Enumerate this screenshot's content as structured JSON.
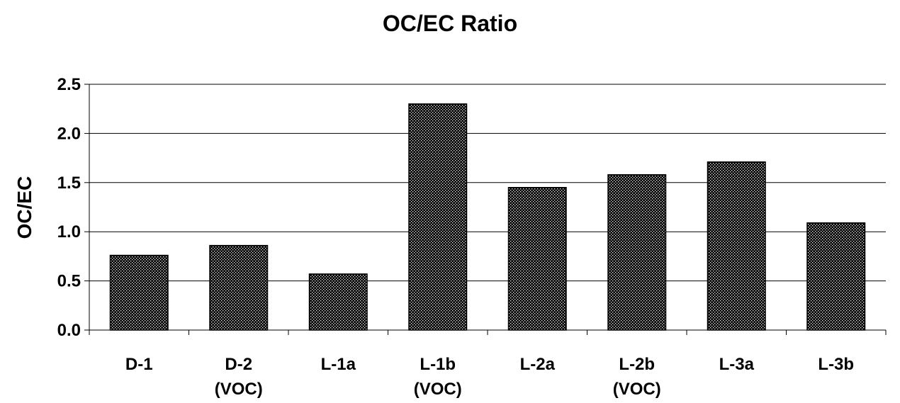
{
  "chart_data": {
    "type": "bar",
    "title": "OC/EC Ratio",
    "xlabel": "",
    "ylabel": "OC/EC",
    "ylim": [
      0,
      2.5
    ],
    "yticks": [
      "0.0",
      "0.5",
      "1.0",
      "1.5",
      "2.0",
      "2.5"
    ],
    "categories": [
      [
        "D-1"
      ],
      [
        "D-2",
        "(VOC)"
      ],
      [
        "L-1a"
      ],
      [
        "L-1b",
        "(VOC)"
      ],
      [
        "L-2a"
      ],
      [
        "L-2b",
        "(VOC)"
      ],
      [
        "L-3a"
      ],
      [
        "L-3b"
      ]
    ],
    "values": [
      0.76,
      0.86,
      0.57,
      2.3,
      1.45,
      1.58,
      1.71,
      1.09
    ],
    "grid": true,
    "legend": "none",
    "bar_pattern": "dotted",
    "colors": {
      "bar_fill": "#000000",
      "dots": "#ffffff",
      "grid": "#000000"
    }
  }
}
